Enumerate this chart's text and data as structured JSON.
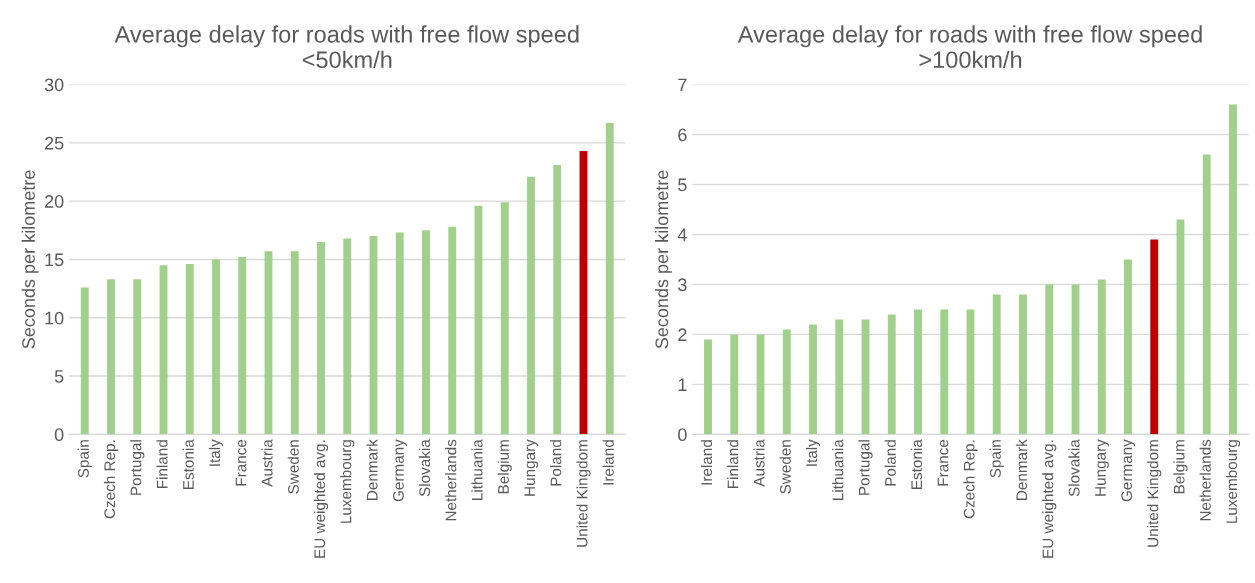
{
  "chart_data": [
    {
      "type": "bar",
      "title": "Average delay for roads with free flow speed\n<50km/h",
      "ylabel": "Seconds per kilometre",
      "categories": [
        "Spain",
        "Czech Rep.",
        "Portugal",
        "Finland",
        "Estonia",
        "Italy",
        "France",
        "Austria",
        "Sweden",
        "EU weighted avg.",
        "Luxembourg",
        "Denmark",
        "Germany",
        "Slovakia",
        "Netherlands",
        "Lithuania",
        "Belgium",
        "Hungary",
        "Poland",
        "United Kingdom",
        "Ireland"
      ],
      "values": [
        12.6,
        13.3,
        13.3,
        14.5,
        14.6,
        15.0,
        15.2,
        15.7,
        15.7,
        16.5,
        16.8,
        17.0,
        17.3,
        17.5,
        17.8,
        19.6,
        19.9,
        22.1,
        23.1,
        24.3,
        26.7
      ],
      "colors": [
        "#a0d08b",
        "#a0d08b",
        "#a0d08b",
        "#a0d08b",
        "#a0d08b",
        "#a0d08b",
        "#a0d08b",
        "#a0d08b",
        "#a0d08b",
        "#a0d08b",
        "#a0d08b",
        "#a0d08b",
        "#a0d08b",
        "#a0d08b",
        "#a0d08b",
        "#a0d08b",
        "#a0d08b",
        "#a0d08b",
        "#a0d08b",
        "#c00000",
        "#a0d08b"
      ],
      "ylim": [
        0,
        30
      ],
      "yticks": [
        0,
        5,
        10,
        15,
        20,
        25,
        30
      ],
      "grid": "y",
      "legend": false
    },
    {
      "type": "bar",
      "title": "Average delay for roads with free flow speed\n>100km/h",
      "ylabel": "Seconds per kilometre",
      "categories": [
        "Ireland",
        "Finland",
        "Austria",
        "Sweden",
        "Italy",
        "Lithuania",
        "Portugal",
        "Poland",
        "Estonia",
        "France",
        "Czech Rep.",
        "Spain",
        "Denmark",
        "EU weighted avg.",
        "Slovakia",
        "Hungary",
        "Germany",
        "United Kingdom",
        "Belgium",
        "Netherlands",
        "Luxembourg"
      ],
      "values": [
        1.9,
        2.0,
        2.0,
        2.1,
        2.2,
        2.3,
        2.3,
        2.4,
        2.5,
        2.5,
        2.5,
        2.8,
        2.8,
        3.0,
        3.0,
        3.1,
        3.5,
        3.9,
        4.3,
        5.6,
        6.6
      ],
      "colors": [
        "#a0d08b",
        "#a0d08b",
        "#a0d08b",
        "#a0d08b",
        "#a0d08b",
        "#a0d08b",
        "#a0d08b",
        "#a0d08b",
        "#a0d08b",
        "#a0d08b",
        "#a0d08b",
        "#a0d08b",
        "#a0d08b",
        "#a0d08b",
        "#a0d08b",
        "#a0d08b",
        "#a0d08b",
        "#c00000",
        "#a0d08b",
        "#a0d08b",
        "#a0d08b"
      ],
      "ylim": [
        0,
        7
      ],
      "yticks": [
        0,
        1,
        2,
        3,
        4,
        5,
        6,
        7
      ],
      "grid": "y",
      "legend": false
    }
  ]
}
